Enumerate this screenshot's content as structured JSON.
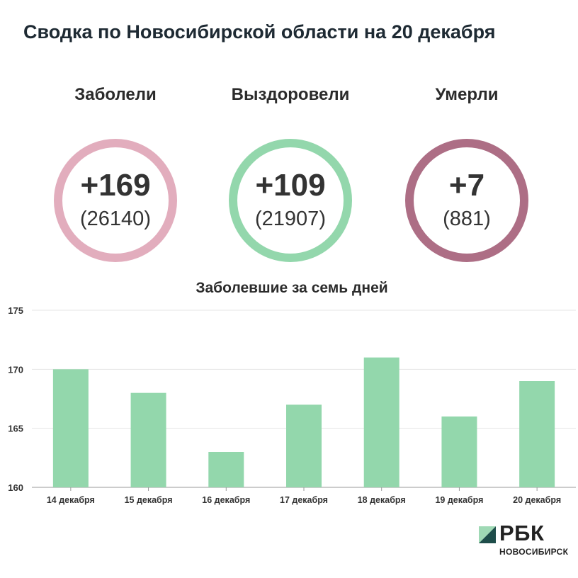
{
  "title": "Сводка по Новосибирской области на 20 декабря",
  "stats": [
    {
      "label": "Заболели",
      "delta": "+169",
      "total": "(26140)",
      "color": "#e2adbd"
    },
    {
      "label": "Выздоровели",
      "delta": "+109",
      "total": "(21907)",
      "color": "#93d7ac"
    },
    {
      "label": "Умерли",
      "delta": "+7",
      "total": "(881)",
      "color": "#ad6e85"
    }
  ],
  "chart_data": {
    "type": "bar",
    "title": "Заболевшие за семь дней",
    "categories": [
      "14 декабря",
      "15 декабря",
      "16 декабря",
      "17 декабря",
      "18 декабря",
      "19 декабря",
      "20 декабря"
    ],
    "values": [
      170,
      168,
      163,
      167,
      171,
      166,
      169
    ],
    "ylim": [
      160,
      175
    ],
    "yticks": [
      160,
      165,
      170,
      175
    ],
    "bar_color": "#93d7ac",
    "grid": true
  },
  "brand": {
    "name": "РБК",
    "city": "НОВОСИБИРСК"
  }
}
